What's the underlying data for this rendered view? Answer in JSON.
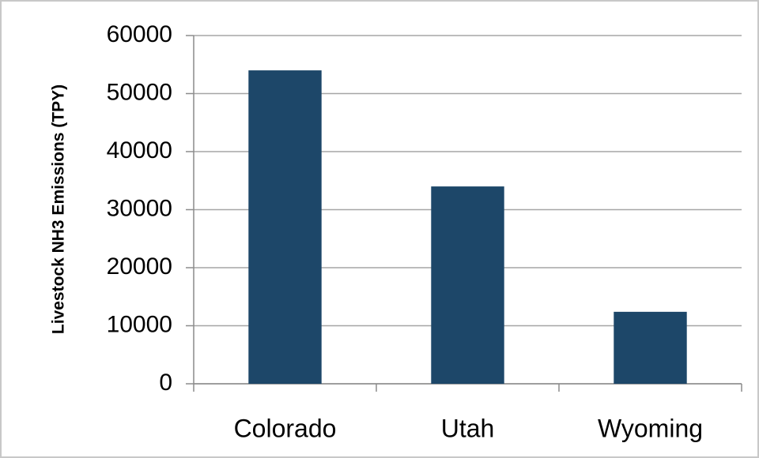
{
  "chart_data": {
    "type": "bar",
    "y_label": "Livestock NH3 Emissions (TPY)",
    "categories": [
      "Colorado",
      "Utah",
      "Wyoming"
    ],
    "values": [
      54000,
      34000,
      12400
    ],
    "color": "#1d4769",
    "ylim": [
      0,
      60000
    ],
    "yticks": [
      0,
      10000,
      20000,
      30000,
      40000,
      50000,
      60000
    ],
    "grid": true
  }
}
